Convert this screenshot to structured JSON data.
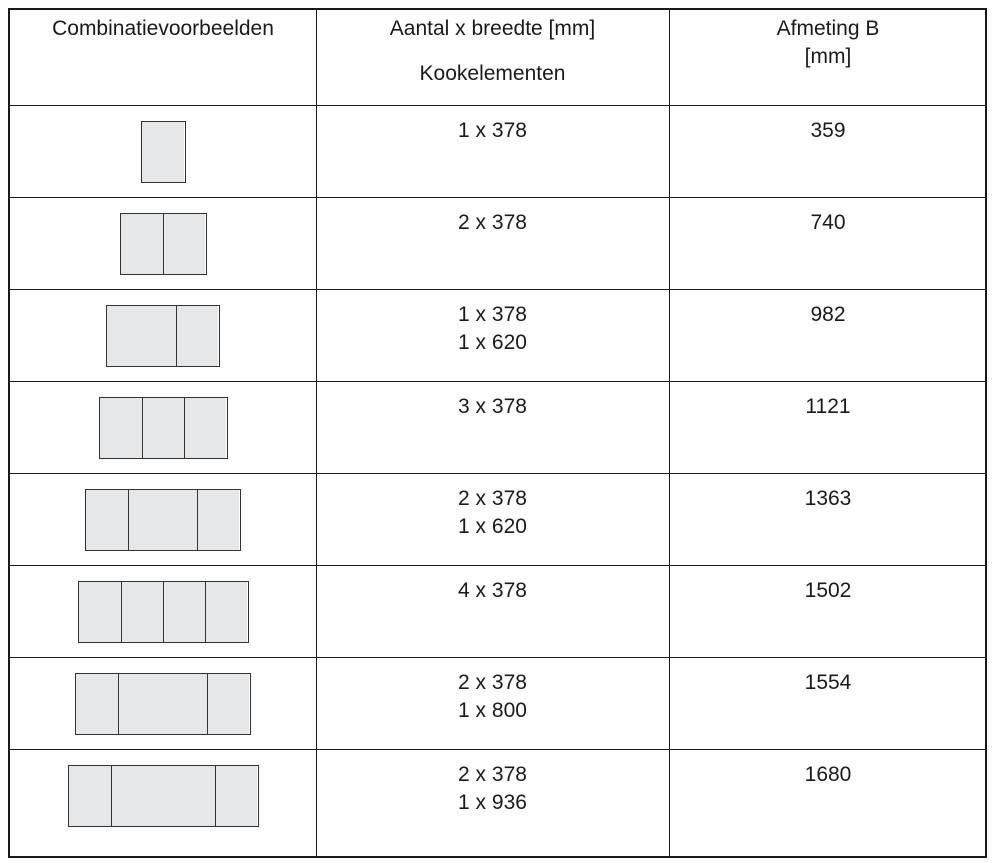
{
  "header": {
    "col1": "Combinatievoorbeelden",
    "col2_line1": "Aantal x breedte [mm]",
    "col2_line2": "Kookelementen",
    "col3_line1": "Afmeting B",
    "col3_line2": "[mm]"
  },
  "rows": [
    {
      "units": [
        378
      ],
      "line1": "1 x 378",
      "line2": "",
      "b": "359"
    },
    {
      "units": [
        378,
        378
      ],
      "line1": "2 x 378",
      "line2": "",
      "b": "740"
    },
    {
      "units": [
        620,
        378
      ],
      "line1": "1 x 378",
      "line2": "1 x 620",
      "b": "982"
    },
    {
      "units": [
        378,
        378,
        378
      ],
      "line1": "3 x 378",
      "line2": "",
      "b": "1121"
    },
    {
      "units": [
        378,
        620,
        378
      ],
      "line1": "2 x 378",
      "line2": "1 x 620",
      "b": "1363"
    },
    {
      "units": [
        378,
        378,
        378,
        378
      ],
      "line1": "4 x 378",
      "line2": "",
      "b": "1502"
    },
    {
      "units": [
        378,
        800,
        378
      ],
      "line1": "2 x 378",
      "line2": "1 x 800",
      "b": "1554"
    },
    {
      "units": [
        378,
        936,
        378
      ],
      "line1": "2 x 378",
      "line2": "1 x 936",
      "b": "1680"
    }
  ]
}
